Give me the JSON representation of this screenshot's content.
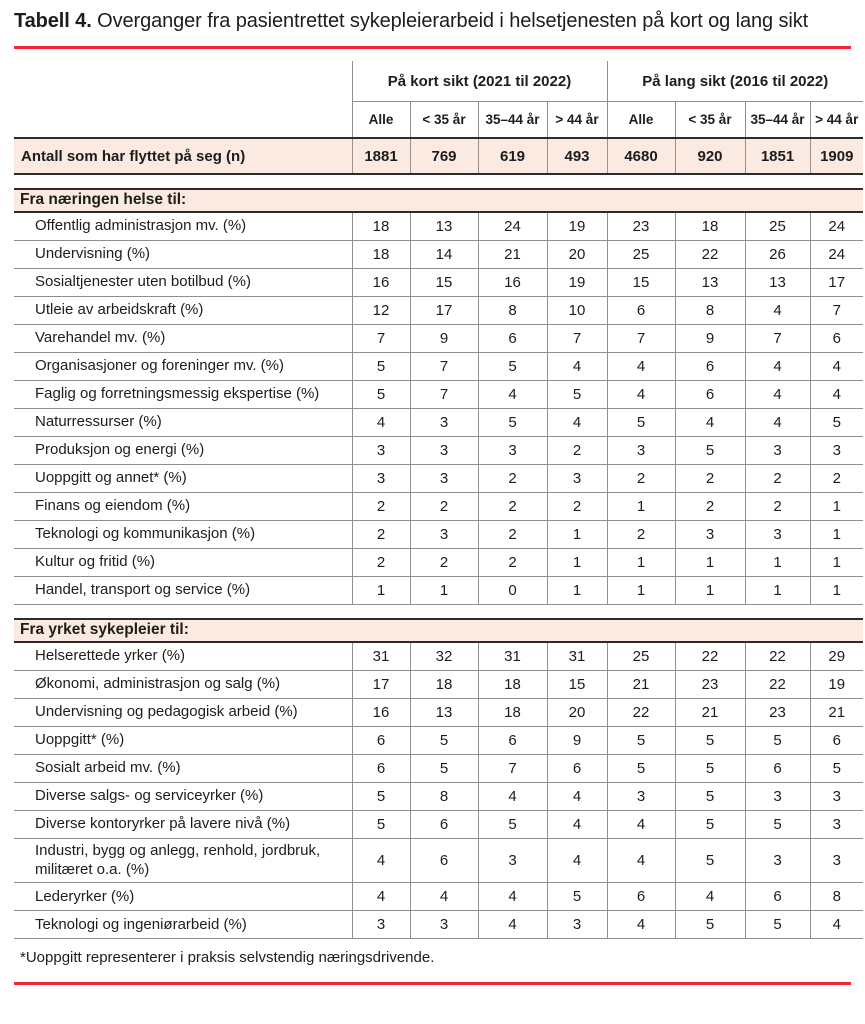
{
  "title": {
    "label": "Tabell 4.",
    "text": "Overganger fra pasientrettet sykepleierarbeid i helsetjenesten på kort og lang sikt"
  },
  "colors": {
    "accent_red": "#ed2939",
    "highlight_pink": "#fbeae2",
    "dark_border": "#2b2b2b",
    "grid_gray": "#8f8f8f"
  },
  "table": {
    "group_headers": [
      {
        "label": "På kort sikt (2021 til 2022)",
        "span": 4
      },
      {
        "label": "På lang sikt (2016 til 2022)",
        "span": 4
      }
    ],
    "column_headers": [
      "Alle",
      "< 35 år",
      "35–44 år",
      "> 44 år",
      "Alle",
      "< 35 år",
      "35–44 år",
      "> 44 år"
    ],
    "count_row": {
      "label": "Antall som har flyttet på seg (n)",
      "values": [
        "1881",
        "769",
        "619",
        "493",
        "4680",
        "920",
        "1851",
        "1909"
      ]
    },
    "sections": [
      {
        "header": "Fra næringen helse til:",
        "rows": [
          {
            "label": "Offentlig administrasjon mv. (%)",
            "values": [
              "18",
              "13",
              "24",
              "19",
              "23",
              "18",
              "25",
              "24"
            ]
          },
          {
            "label": "Undervisning (%)",
            "values": [
              "18",
              "14",
              "21",
              "20",
              "25",
              "22",
              "26",
              "24"
            ]
          },
          {
            "label": "Sosialtjenester uten botilbud (%)",
            "values": [
              "16",
              "15",
              "16",
              "19",
              "15",
              "13",
              "13",
              "17"
            ]
          },
          {
            "label": "Utleie av arbeidskraft (%)",
            "values": [
              "12",
              "17",
              "8",
              "10",
              "6",
              "8",
              "4",
              "7"
            ]
          },
          {
            "label": "Varehandel mv. (%)",
            "values": [
              "7",
              "9",
              "6",
              "7",
              "7",
              "9",
              "7",
              "6"
            ]
          },
          {
            "label": "Organisasjoner og foreninger mv. (%)",
            "values": [
              "5",
              "7",
              "5",
              "4",
              "4",
              "6",
              "4",
              "4"
            ]
          },
          {
            "label": "Faglig og forretningsmessig ekspertise (%)",
            "values": [
              "5",
              "7",
              "4",
              "5",
              "4",
              "6",
              "4",
              "4"
            ]
          },
          {
            "label": "Naturressurser (%)",
            "values": [
              "4",
              "3",
              "5",
              "4",
              "5",
              "4",
              "4",
              "5"
            ]
          },
          {
            "label": "Produksjon og energi (%)",
            "values": [
              "3",
              "3",
              "3",
              "2",
              "3",
              "5",
              "3",
              "3"
            ]
          },
          {
            "label": "Uoppgitt og annet* (%)",
            "values": [
              "3",
              "3",
              "2",
              "3",
              "2",
              "2",
              "2",
              "2"
            ]
          },
          {
            "label": "Finans og eiendom (%)",
            "values": [
              "2",
              "2",
              "2",
              "2",
              "1",
              "2",
              "2",
              "1"
            ]
          },
          {
            "label": "Teknologi og kommunikasjon (%)",
            "values": [
              "2",
              "3",
              "2",
              "1",
              "2",
              "3",
              "3",
              "1"
            ]
          },
          {
            "label": "Kultur og fritid (%)",
            "values": [
              "2",
              "2",
              "2",
              "1",
              "1",
              "1",
              "1",
              "1"
            ]
          },
          {
            "label": "Handel, transport og service (%)",
            "values": [
              "1",
              "1",
              "0",
              "1",
              "1",
              "1",
              "1",
              "1"
            ]
          }
        ]
      },
      {
        "header": "Fra yrket sykepleier til:",
        "rows": [
          {
            "label": "Helserettede yrker (%)",
            "values": [
              "31",
              "32",
              "31",
              "31",
              "25",
              "22",
              "22",
              "29"
            ]
          },
          {
            "label": "Økonomi, administrasjon og salg (%)",
            "values": [
              "17",
              "18",
              "18",
              "15",
              "21",
              "23",
              "22",
              "19"
            ]
          },
          {
            "label": "Undervisning og pedagogisk arbeid (%)",
            "values": [
              "16",
              "13",
              "18",
              "20",
              "22",
              "21",
              "23",
              "21"
            ]
          },
          {
            "label": "Uoppgitt* (%)",
            "values": [
              "6",
              "5",
              "6",
              "9",
              "5",
              "5",
              "5",
              "6"
            ]
          },
          {
            "label": "Sosialt arbeid mv. (%)",
            "values": [
              "6",
              "5",
              "7",
              "6",
              "5",
              "5",
              "6",
              "5"
            ]
          },
          {
            "label": "Diverse salgs- og serviceyrker (%)",
            "values": [
              "5",
              "8",
              "4",
              "4",
              "3",
              "5",
              "3",
              "3"
            ]
          },
          {
            "label": "Diverse kontoryrker på lavere nivå (%)",
            "values": [
              "5",
              "6",
              "5",
              "4",
              "4",
              "5",
              "5",
              "3"
            ]
          },
          {
            "label": "Industri, bygg og anlegg, renhold, jordbruk, militæret o.a. (%)",
            "values": [
              "4",
              "6",
              "3",
              "4",
              "4",
              "5",
              "3",
              "3"
            ]
          },
          {
            "label": "Lederyrker (%)",
            "values": [
              "4",
              "4",
              "4",
              "5",
              "6",
              "4",
              "6",
              "8"
            ]
          },
          {
            "label": "Teknologi og ingeniørarbeid (%)",
            "values": [
              "3",
              "3",
              "4",
              "3",
              "4",
              "5",
              "5",
              "4"
            ]
          }
        ]
      }
    ]
  },
  "footnote": "*Uoppgitt representerer i praksis selvstendig næringsdrivende."
}
